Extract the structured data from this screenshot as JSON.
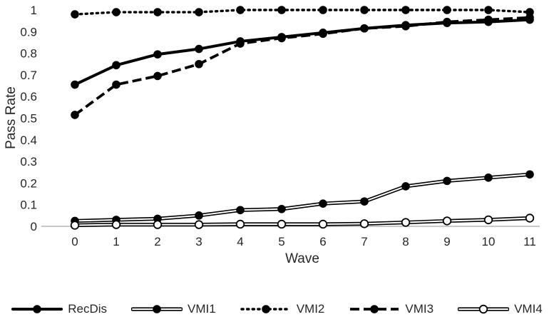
{
  "chart_data": {
    "type": "line",
    "title": "",
    "xlabel": "Wave",
    "ylabel": "Pass Rate",
    "x": [
      0,
      1,
      2,
      3,
      4,
      5,
      6,
      7,
      8,
      9,
      10,
      11
    ],
    "ylim": [
      0,
      1
    ],
    "yticks": [
      0,
      0.1,
      0.2,
      0.3,
      0.4,
      0.5,
      0.6,
      0.7,
      0.8,
      0.9,
      1
    ],
    "grid": false,
    "legend_position": "bottom",
    "line_color": "#000000",
    "series": [
      {
        "name": "RecDis",
        "style": "solid-thick",
        "marker": "filled",
        "values": [
          0.655,
          0.745,
          0.795,
          0.82,
          0.855,
          0.875,
          0.895,
          0.915,
          0.93,
          0.94,
          0.945,
          0.955
        ]
      },
      {
        "name": "VMI1",
        "style": "double",
        "marker": "filled",
        "values": [
          0.025,
          0.03,
          0.035,
          0.05,
          0.075,
          0.08,
          0.105,
          0.115,
          0.185,
          0.21,
          0.225,
          0.24
        ]
      },
      {
        "name": "VMI2",
        "style": "dotted",
        "marker": "filled",
        "values": [
          0.98,
          0.99,
          0.99,
          0.99,
          1,
          1,
          1,
          1,
          1,
          1,
          1,
          0.99
        ]
      },
      {
        "name": "VMI3",
        "style": "dashed",
        "marker": "filled",
        "values": [
          0.515,
          0.655,
          0.695,
          0.75,
          0.845,
          0.87,
          0.89,
          0.915,
          0.925,
          0.945,
          0.955,
          0.965
        ]
      },
      {
        "name": "VMI4",
        "style": "double",
        "marker": "open",
        "values": [
          0.005,
          0.008,
          0.008,
          0.008,
          0.01,
          0.01,
          0.01,
          0.012,
          0.018,
          0.025,
          0.03,
          0.038
        ]
      }
    ]
  }
}
